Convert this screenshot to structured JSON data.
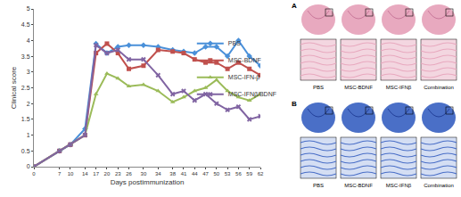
{
  "chart_data": {
    "type": "line",
    "x_label": "Days postimmunization",
    "y_label": "Clinical score",
    "x": [
      0,
      7,
      10,
      14,
      17,
      20,
      23,
      26,
      30,
      34,
      38,
      41,
      44,
      47,
      50,
      53,
      56,
      59,
      62
    ],
    "xlim": [
      0,
      62
    ],
    "xticks": [
      0,
      7,
      10,
      14,
      17,
      20,
      23,
      26,
      30,
      34,
      38,
      41,
      44,
      47,
      50,
      53,
      56,
      59,
      62
    ],
    "ylim": [
      0,
      5
    ],
    "yticks": [
      0,
      0.5,
      1,
      1.5,
      2,
      2.5,
      3,
      3.5,
      4,
      4.5,
      5
    ],
    "grid": false,
    "legend": "right",
    "series": [
      {
        "name": "PBS",
        "color": "#4a90d9",
        "marker": "diamond",
        "values": [
          0,
          0.5,
          0.7,
          1.2,
          3.9,
          3.6,
          3.8,
          3.85,
          3.85,
          3.8,
          3.7,
          3.65,
          3.6,
          3.8,
          3.8,
          3.5,
          4.0,
          3.5,
          3.2
        ]
      },
      {
        "name": "MSC-BDNF",
        "color": "#c0504d",
        "marker": "square",
        "values": [
          0,
          0.5,
          0.7,
          1.0,
          3.6,
          3.9,
          3.6,
          3.1,
          3.2,
          3.7,
          3.65,
          3.6,
          3.4,
          3.3,
          3.3,
          3.1,
          3.3,
          3.1,
          2.9
        ]
      },
      {
        "name": "MSC-IFN-β",
        "color": "#9bbb59",
        "marker": "triangle-up",
        "values": [
          0,
          0.5,
          0.7,
          1.0,
          2.3,
          2.95,
          2.8,
          2.55,
          2.6,
          2.4,
          2.05,
          2.2,
          2.4,
          2.5,
          2.75,
          2.4,
          2.2,
          2.1,
          2.3
        ]
      },
      {
        "name": "MSC-IFNβ/BDNF",
        "color": "#8064a2",
        "marker": "x",
        "values": [
          0,
          0.5,
          0.7,
          1.0,
          3.85,
          3.6,
          3.7,
          3.4,
          3.4,
          2.9,
          2.3,
          2.4,
          2.1,
          2.3,
          2.0,
          1.8,
          1.9,
          1.5,
          1.6
        ]
      }
    ]
  },
  "histology": {
    "panels": [
      {
        "label": "A",
        "captions": [
          "PBS",
          "MSC-BDNF",
          "MSC-IFNβ",
          "Combination"
        ]
      },
      {
        "label": "B",
        "captions": [
          "PBS",
          "MSC-BDNF",
          "MSC-IFNβ",
          "Combination"
        ]
      }
    ]
  }
}
